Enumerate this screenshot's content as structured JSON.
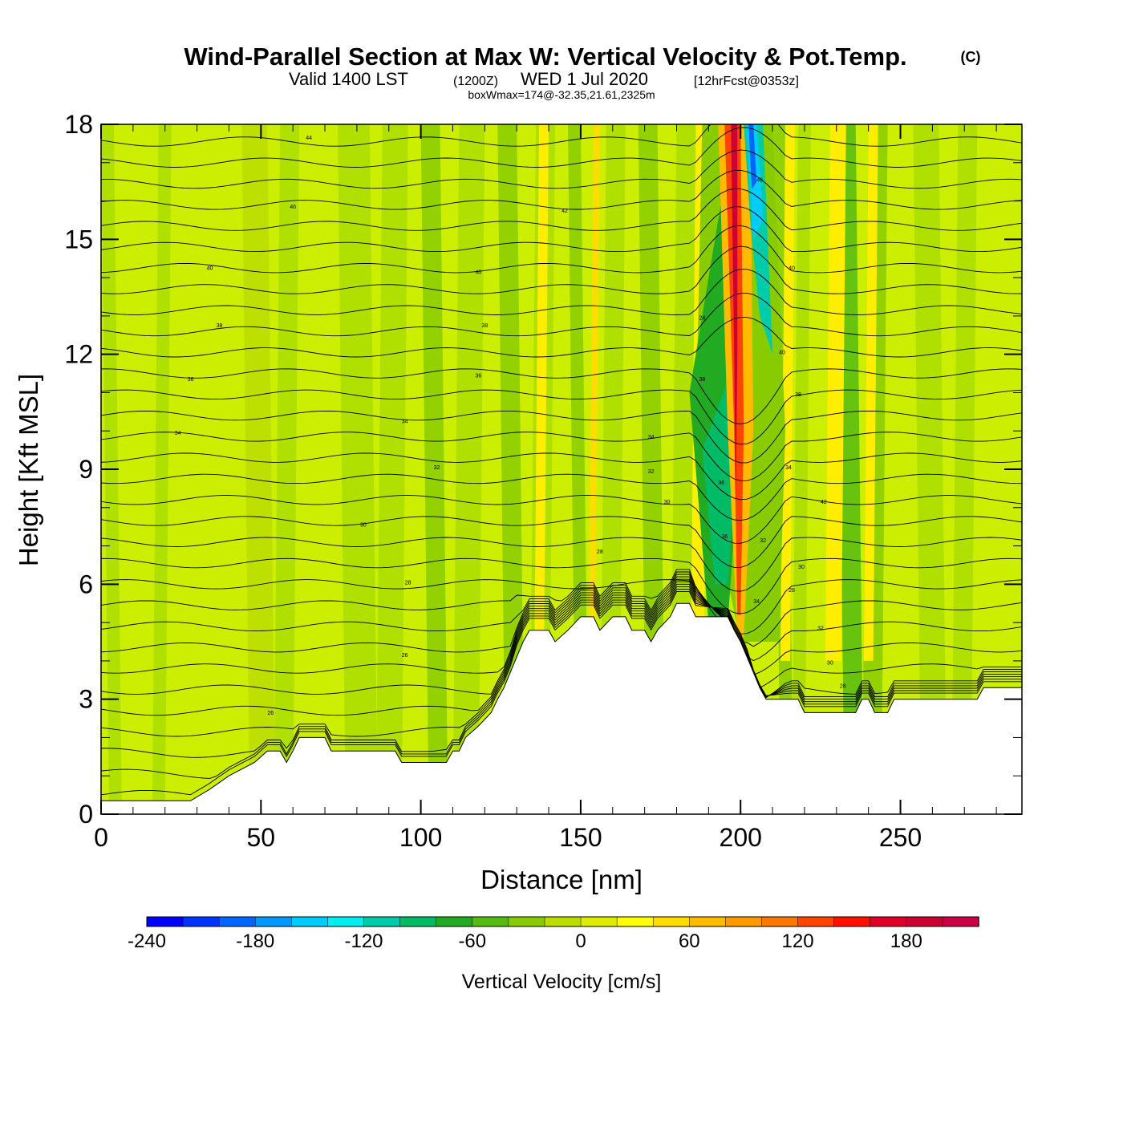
{
  "title": {
    "main": "Wind-Parallel Section at Max W: Vertical Velocity & Pot.Temp.",
    "copyright": "(C)",
    "valid_prefix": "Valid 1400 LST",
    "utc": "(1200Z)",
    "valid_date": "WED 1 Jul 2020",
    "forecast": "[12hrFcst@0353z]",
    "boxwmax": "boxWmax=174@-32.35,21.61,2325m"
  },
  "chart_data": {
    "type": "heatmap",
    "title": "Wind-Parallel Section at Max W: Vertical Velocity & Pot.Temp.",
    "xlabel": "Distance [nm]",
    "ylabel": "Height [Kft MSL]",
    "xlim": [
      0,
      288
    ],
    "ylim": [
      0,
      18
    ],
    "x_ticks": [
      0,
      50,
      100,
      150,
      200,
      250
    ],
    "x_tick_labels": [
      "0",
      "50",
      "100",
      "150",
      "200",
      "250"
    ],
    "y_ticks": [
      0,
      3,
      6,
      9,
      12,
      15,
      18
    ],
    "y_tick_labels": [
      "0",
      "3",
      "6",
      "9",
      "12",
      "15",
      "18"
    ],
    "colorbar": {
      "title": "Vertical Velocity [cm/s]",
      "min": -240,
      "max": 220,
      "step": 20,
      "tick_values": [
        -240,
        -180,
        -120,
        -60,
        0,
        60,
        120,
        180
      ],
      "tick_labels": [
        "-240",
        "-180",
        "-120",
        "-60",
        "0",
        "60",
        "120",
        "180"
      ],
      "colors": [
        "#0000ff",
        "#0033ff",
        "#0066ff",
        "#0099ff",
        "#00ccff",
        "#00eeee",
        "#00ccaa",
        "#00bb66",
        "#22aa22",
        "#55bb11",
        "#88cc00",
        "#bbdd00",
        "#dded00",
        "#ffff00",
        "#ffdd00",
        "#ffbb00",
        "#ff9900",
        "#ff7700",
        "#ff4400",
        "#ff1100",
        "#e0002a",
        "#cc0033",
        "#cc0044"
      ]
    },
    "terrain_kft": [
      [
        0,
        0.35
      ],
      [
        28,
        0.35
      ],
      [
        34,
        0.65
      ],
      [
        40,
        1.0
      ],
      [
        48,
        1.35
      ],
      [
        52,
        1.65
      ],
      [
        56,
        1.65
      ],
      [
        58,
        1.35
      ],
      [
        60,
        1.65
      ],
      [
        62,
        2.0
      ],
      [
        70,
        2.0
      ],
      [
        72,
        1.65
      ],
      [
        92,
        1.65
      ],
      [
        94,
        1.35
      ],
      [
        108,
        1.35
      ],
      [
        110,
        1.65
      ],
      [
        112,
        1.65
      ],
      [
        114,
        2.0
      ],
      [
        118,
        2.3
      ],
      [
        122,
        2.65
      ],
      [
        124,
        3.0
      ],
      [
        126,
        3.3
      ],
      [
        128,
        3.7
      ],
      [
        130,
        4.1
      ],
      [
        132,
        4.5
      ],
      [
        134,
        4.8
      ],
      [
        140,
        4.8
      ],
      [
        142,
        4.5
      ],
      [
        146,
        4.8
      ],
      [
        150,
        5.15
      ],
      [
        154,
        5.15
      ],
      [
        156,
        4.8
      ],
      [
        160,
        5.15
      ],
      [
        164,
        5.15
      ],
      [
        166,
        4.8
      ],
      [
        170,
        4.8
      ],
      [
        172,
        4.5
      ],
      [
        174,
        4.8
      ],
      [
        178,
        5.15
      ],
      [
        180,
        5.5
      ],
      [
        184,
        5.5
      ],
      [
        186,
        5.15
      ],
      [
        196,
        5.15
      ],
      [
        198,
        4.8
      ],
      [
        200,
        4.5
      ],
      [
        202,
        4.1
      ],
      [
        204,
        3.7
      ],
      [
        206,
        3.3
      ],
      [
        208,
        3.0
      ],
      [
        218,
        3.0
      ],
      [
        220,
        2.65
      ],
      [
        236,
        2.65
      ],
      [
        238,
        3.0
      ],
      [
        240,
        3.0
      ],
      [
        242,
        2.65
      ],
      [
        246,
        2.65
      ],
      [
        248,
        3.0
      ],
      [
        274,
        3.0
      ],
      [
        276,
        3.3
      ],
      [
        288,
        3.3
      ]
    ],
    "theta_contour_labels": [
      "44",
      "46",
      "42",
      "40",
      "40",
      "38",
      "38",
      "36",
      "36",
      "34",
      "34",
      "34",
      "32",
      "32",
      "30",
      "30",
      "28",
      "28",
      "26",
      "26",
      "24",
      "40",
      "38",
      "36",
      "34",
      "32",
      "30",
      "28",
      "46",
      "42",
      "40",
      "38",
      "36",
      "34",
      "32",
      "30",
      "28"
    ],
    "theta_contours": [
      {
        "label": "24",
        "base_height": 0.8,
        "perturb": [
          [
            210,
            -0.2
          ]
        ]
      },
      {
        "label": "26",
        "base_height": 1.7,
        "perturb": []
      },
      {
        "label": "28",
        "base_height": 2.4,
        "perturb": []
      },
      {
        "label": "30",
        "base_height": 3.2,
        "perturb": []
      },
      {
        "label": "32",
        "base_height": 4.1,
        "perturb": []
      },
      {
        "label": "34",
        "base_height": 5.0,
        "perturb": []
      },
      {
        "label": "36",
        "base_height": 6.0,
        "perturb": []
      },
      {
        "label": "38",
        "base_height": 6.8,
        "perturb": []
      },
      {
        "label": "40",
        "base_height": 7.6,
        "perturb": []
      },
      {
        "label": "42",
        "base_height": 8.3,
        "perturb": []
      }
    ]
  }
}
